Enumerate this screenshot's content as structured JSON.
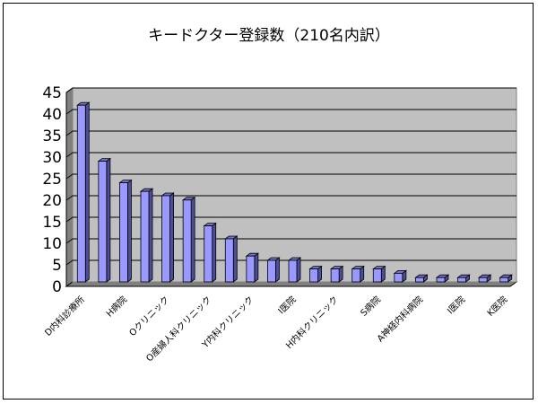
{
  "chart_data": {
    "type": "bar",
    "title": "キードクター登録数（210名内訳）",
    "xlabel": "",
    "ylabel": "",
    "ylim": [
      0,
      45
    ],
    "yticks": [
      0,
      5,
      10,
      15,
      20,
      25,
      30,
      35,
      40,
      45
    ],
    "grid": true,
    "legend": "none",
    "categories": [
      "D内科診療所",
      "",
      "H病院",
      "",
      "Oクリニック",
      "",
      "O産婦人科クリニック",
      "",
      "Y内科クリニック",
      "",
      "I医院",
      "",
      "H内科クリニック",
      "",
      "S病院",
      "",
      "A神経内科病院",
      "",
      "I医院",
      "",
      "K医院"
    ],
    "values": [
      41,
      28,
      23,
      21,
      20,
      19,
      13,
      10,
      6,
      5,
      5,
      3,
      3,
      3,
      3,
      2,
      1,
      1,
      1,
      1,
      1
    ],
    "colors": {
      "bar_fill": "#9999ff",
      "bar_stroke": "#000000",
      "plot_bg": "#c0c0c0",
      "grid": "#000000"
    }
  }
}
